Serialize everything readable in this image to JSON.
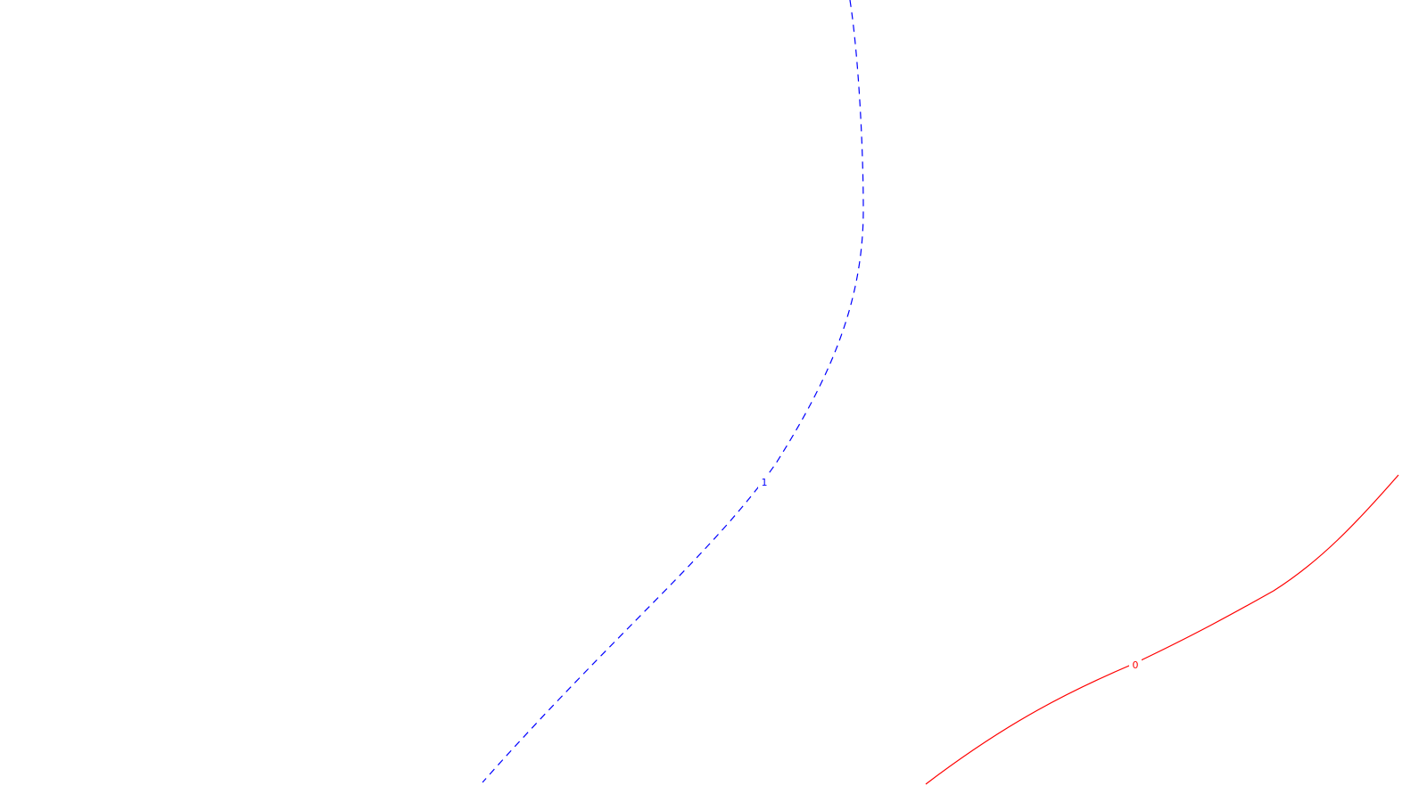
{
  "chart_data": {
    "type": "contour",
    "title": "",
    "xlabel": "",
    "ylabel": "",
    "grid": false,
    "legend": false,
    "series": [
      {
        "level": 1,
        "label": "1",
        "color": "#0000ff",
        "line_style": "dashed"
      },
      {
        "level": 0,
        "label": "0",
        "color": "#ff0000",
        "line_style": "solid"
      }
    ]
  }
}
